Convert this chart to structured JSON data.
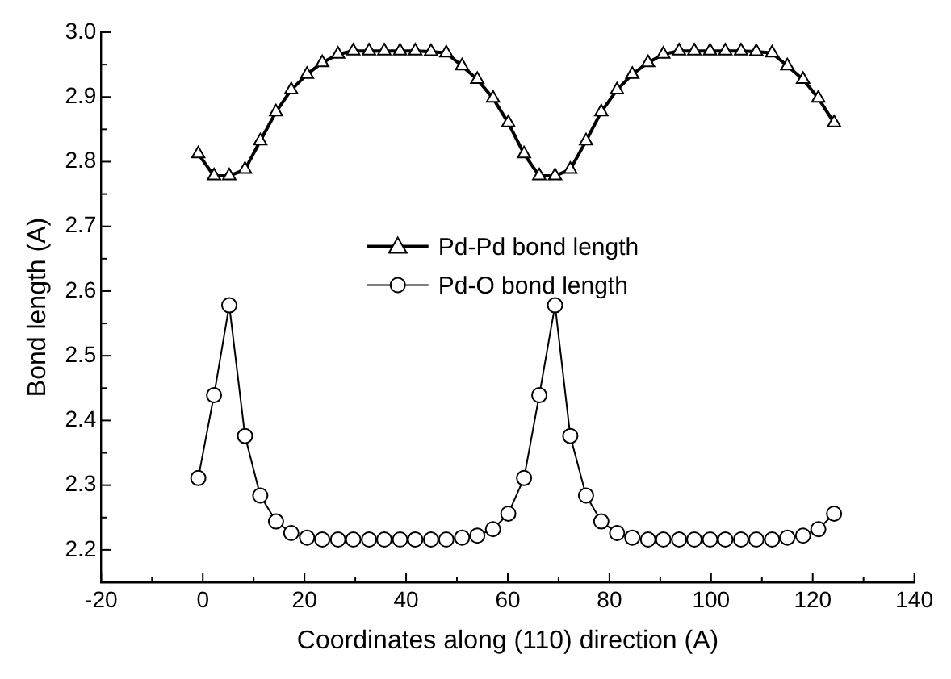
{
  "chart_data": {
    "type": "line",
    "xlabel": "Coordinates along (110) direction (A)",
    "ylabel": "Bond length (A)",
    "x": [
      -0.9,
      2.2,
      5.2,
      8.3,
      11.3,
      14.4,
      17.4,
      20.5,
      23.5,
      26.6,
      29.6,
      32.7,
      35.7,
      38.8,
      41.8,
      44.9,
      47.9,
      51.0,
      54.0,
      57.1,
      60.1,
      63.2,
      66.2,
      69.3,
      72.3,
      75.4,
      78.4,
      81.5,
      84.5,
      87.6,
      90.6,
      93.7,
      96.7,
      99.8,
      102.8,
      105.9,
      108.9,
      112.0,
      115.0,
      118.1,
      121.1,
      124.2
    ],
    "series": [
      {
        "name": "Pd-Pd bond length",
        "color": "#000000",
        "marker": "triangle",
        "values": [
          2.812,
          2.778,
          2.778,
          2.788,
          2.832,
          2.877,
          2.911,
          2.935,
          2.953,
          2.966,
          2.971,
          2.971,
          2.971,
          2.971,
          2.971,
          2.97,
          2.968,
          2.948,
          2.927,
          2.898,
          2.86,
          2.812,
          2.778,
          2.778,
          2.788,
          2.832,
          2.877,
          2.911,
          2.935,
          2.953,
          2.966,
          2.971,
          2.971,
          2.971,
          2.971,
          2.971,
          2.97,
          2.968,
          2.948,
          2.927,
          2.898,
          2.86
        ]
      },
      {
        "name": "Pd-O bond length",
        "color": "#000000",
        "marker": "circle",
        "values": [
          2.311,
          2.439,
          2.578,
          2.376,
          2.284,
          2.244,
          2.226,
          2.219,
          2.216,
          2.216,
          2.216,
          2.216,
          2.216,
          2.216,
          2.216,
          2.216,
          2.216,
          2.219,
          2.222,
          2.232,
          2.256,
          2.311,
          2.439,
          2.578,
          2.376,
          2.284,
          2.244,
          2.226,
          2.219,
          2.216,
          2.216,
          2.216,
          2.216,
          2.216,
          2.216,
          2.216,
          2.216,
          2.216,
          2.219,
          2.222,
          2.232,
          2.256
        ]
      }
    ],
    "xlim": [
      -20,
      140
    ],
    "xticks": [
      -20,
      {
        "value": -10,
        "label": null
      },
      0,
      {
        "value": 10,
        "label": null
      },
      20,
      {
        "value": 30,
        "label": null
      },
      40,
      {
        "value": 50,
        "label": null
      },
      60,
      {
        "value": 70,
        "label": null
      },
      80,
      {
        "value": 90,
        "label": null
      },
      100,
      {
        "value": 110,
        "label": null
      },
      120,
      {
        "value": 130,
        "label": null
      },
      140
    ],
    "ylim": [
      2.15,
      3.0
    ],
    "yticks": [
      {
        "value": 2.15,
        "label": null
      },
      2.2,
      {
        "value": 2.25,
        "label": null
      },
      2.3,
      {
        "value": 2.35,
        "label": null
      },
      2.4,
      {
        "value": 2.45,
        "label": null
      },
      2.5,
      {
        "value": 2.55,
        "label": null
      },
      2.6,
      {
        "value": 2.65,
        "label": null
      },
      2.7,
      {
        "value": 2.75,
        "label": null
      },
      2.8,
      {
        "value": 2.85,
        "label": null
      },
      2.9,
      {
        "value": 2.95,
        "label": null
      },
      {
        "value": 3.0,
        "label": "3.0"
      }
    ],
    "grid": false,
    "legend": "center",
    "line_style": "solid"
  }
}
